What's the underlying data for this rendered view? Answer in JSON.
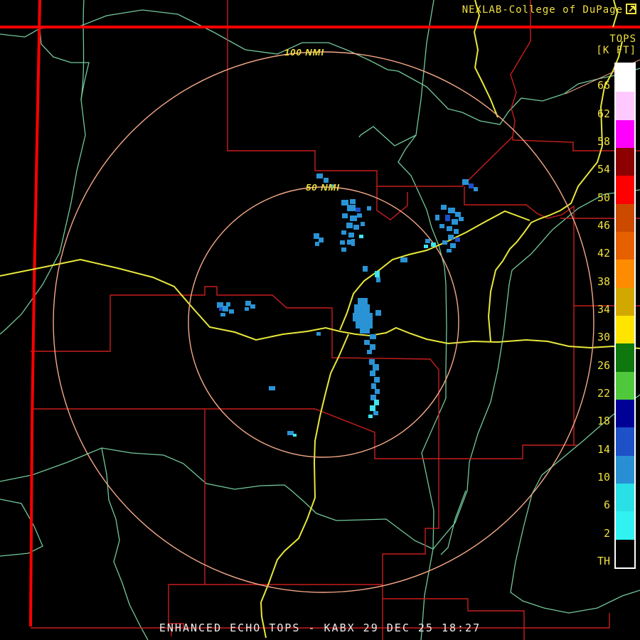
{
  "header": {
    "brand": "NEXLAB-College of DuPage",
    "logo": "corner-box-icon"
  },
  "colorbar": {
    "title1": "TOPS",
    "title2": "[K FT]",
    "labels": [
      "66",
      "62",
      "58",
      "54",
      "50",
      "46",
      "42",
      "38",
      "34",
      "30",
      "26",
      "22",
      "18",
      "14",
      "10",
      "6",
      "2",
      "TH"
    ],
    "colors": [
      "#FFFFFF",
      "#FFC8FF",
      "#FF00FF",
      "#8C0000",
      "#FF0000",
      "#CC4A00",
      "#E66000",
      "#FF8C00",
      "#D2A800",
      "#FFE400",
      "#0E780E",
      "#50C83C",
      "#000096",
      "#1E50C8",
      "#2890D2",
      "#28E0E6",
      "#30F2F2",
      "#000000"
    ]
  },
  "rings": {
    "outer_label": "100 NMI",
    "inner_label": "50 NMI"
  },
  "caption": "ENHANCED ECHO TOPS - KABX 29 DEC 25 18:27",
  "map_colors": {
    "background": "#000000",
    "state_border": "#FF0000",
    "county_border": "#C81E1E",
    "highway": "#E8E83C",
    "river": "#72C89A",
    "range_ring": "#F4A988",
    "label_yellow": "#F0E040",
    "caption_white": "#ECECEC"
  },
  "echoes": {
    "palette": {
      "s": "#2A93D5",
      "c": "#40E4EC",
      "n": "#1E4FC8"
    },
    "cells": [
      [
        445,
        244,
        9,
        7,
        "s"
      ],
      [
        455,
        250,
        7,
        7,
        "s"
      ],
      [
        463,
        259,
        6,
        5,
        "s"
      ],
      [
        480,
        281,
        10,
        8,
        "s"
      ],
      [
        492,
        280,
        8,
        7,
        "s"
      ],
      [
        488,
        288,
        12,
        9,
        "s"
      ],
      [
        500,
        292,
        7,
        6,
        "n"
      ],
      [
        481,
        300,
        8,
        7,
        "s"
      ],
      [
        492,
        303,
        10,
        8,
        "s"
      ],
      [
        502,
        300,
        7,
        6,
        "s"
      ],
      [
        487,
        313,
        9,
        8,
        "s"
      ],
      [
        497,
        316,
        8,
        7,
        "s"
      ],
      [
        507,
        312,
        6,
        6,
        "s"
      ],
      [
        480,
        324,
        7,
        6,
        "s"
      ],
      [
        490,
        327,
        8,
        7,
        "s"
      ],
      [
        516,
        290,
        6,
        6,
        "s"
      ],
      [
        505,
        330,
        6,
        5,
        "c"
      ],
      [
        650,
        252,
        9,
        8,
        "s"
      ],
      [
        659,
        258,
        7,
        7,
        "n"
      ],
      [
        666,
        263,
        6,
        6,
        "s"
      ],
      [
        620,
        288,
        8,
        7,
        "s"
      ],
      [
        630,
        292,
        10,
        8,
        "s"
      ],
      [
        640,
        298,
        8,
        7,
        "s"
      ],
      [
        626,
        302,
        7,
        9,
        "n"
      ],
      [
        635,
        308,
        9,
        8,
        "s"
      ],
      [
        645,
        305,
        7,
        6,
        "s"
      ],
      [
        618,
        315,
        7,
        6,
        "s"
      ],
      [
        628,
        318,
        8,
        7,
        "s"
      ],
      [
        612,
        302,
        6,
        8,
        "s"
      ],
      [
        638,
        322,
        7,
        7,
        "s"
      ],
      [
        630,
        330,
        8,
        7,
        "s"
      ],
      [
        640,
        334,
        7,
        6,
        "n"
      ],
      [
        622,
        338,
        7,
        6,
        "s"
      ],
      [
        633,
        342,
        8,
        7,
        "s"
      ],
      [
        598,
        336,
        7,
        6,
        "s"
      ],
      [
        606,
        341,
        7,
        6,
        "c"
      ],
      [
        596,
        344,
        6,
        5,
        "c"
      ],
      [
        628,
        350,
        7,
        5,
        "s"
      ],
      [
        305,
        425,
        9,
        8,
        "s"
      ],
      [
        313,
        430,
        8,
        8,
        "s"
      ],
      [
        308,
        432,
        5,
        5,
        "n"
      ],
      [
        318,
        425,
        6,
        6,
        "s"
      ],
      [
        322,
        435,
        7,
        6,
        "s"
      ],
      [
        310,
        440,
        7,
        5,
        "s"
      ],
      [
        345,
        423,
        8,
        7,
        "s"
      ],
      [
        352,
        428,
        7,
        6,
        "s"
      ],
      [
        344,
        432,
        6,
        5,
        "s"
      ],
      [
        441,
        328,
        8,
        8,
        "s"
      ],
      [
        448,
        334,
        7,
        7,
        "s"
      ],
      [
        443,
        340,
        6,
        6,
        "s"
      ],
      [
        478,
        338,
        7,
        6,
        "s"
      ],
      [
        488,
        337,
        10,
        7,
        "s"
      ],
      [
        494,
        336,
        5,
        10,
        "s"
      ],
      [
        480,
        348,
        7,
        6,
        "s"
      ],
      [
        510,
        374,
        7,
        8,
        "s"
      ],
      [
        527,
        381,
        7,
        9,
        "c"
      ],
      [
        529,
        390,
        6,
        7,
        "s"
      ],
      [
        563,
        362,
        10,
        7,
        "s"
      ],
      [
        445,
        467,
        6,
        5,
        "s"
      ],
      [
        378,
        543,
        9,
        6,
        "s"
      ],
      [
        503,
        419,
        14,
        10,
        "s"
      ],
      [
        498,
        428,
        22,
        14,
        "s"
      ],
      [
        496,
        440,
        28,
        12,
        "s"
      ],
      [
        500,
        452,
        24,
        10,
        "s"
      ],
      [
        506,
        461,
        14,
        8,
        "s"
      ],
      [
        528,
        436,
        8,
        8,
        "s"
      ],
      [
        520,
        470,
        9,
        7,
        "s"
      ],
      [
        512,
        478,
        8,
        7,
        "s"
      ],
      [
        520,
        484,
        8,
        8,
        "s"
      ],
      [
        516,
        492,
        7,
        6,
        "s"
      ],
      [
        519,
        505,
        8,
        8,
        "s"
      ],
      [
        524,
        512,
        9,
        9,
        "s"
      ],
      [
        520,
        521,
        8,
        8,
        "s"
      ],
      [
        526,
        530,
        8,
        8,
        "s"
      ],
      [
        522,
        539,
        7,
        8,
        "s"
      ],
      [
        527,
        547,
        7,
        7,
        "s"
      ],
      [
        521,
        555,
        8,
        8,
        "s"
      ],
      [
        526,
        562,
        7,
        8,
        "c"
      ],
      [
        520,
        570,
        8,
        8,
        "c"
      ],
      [
        525,
        578,
        7,
        6,
        "s"
      ],
      [
        518,
        583,
        6,
        5,
        "c"
      ],
      [
        404,
        606,
        9,
        6,
        "s"
      ],
      [
        412,
        610,
        5,
        4,
        "c"
      ]
    ]
  }
}
